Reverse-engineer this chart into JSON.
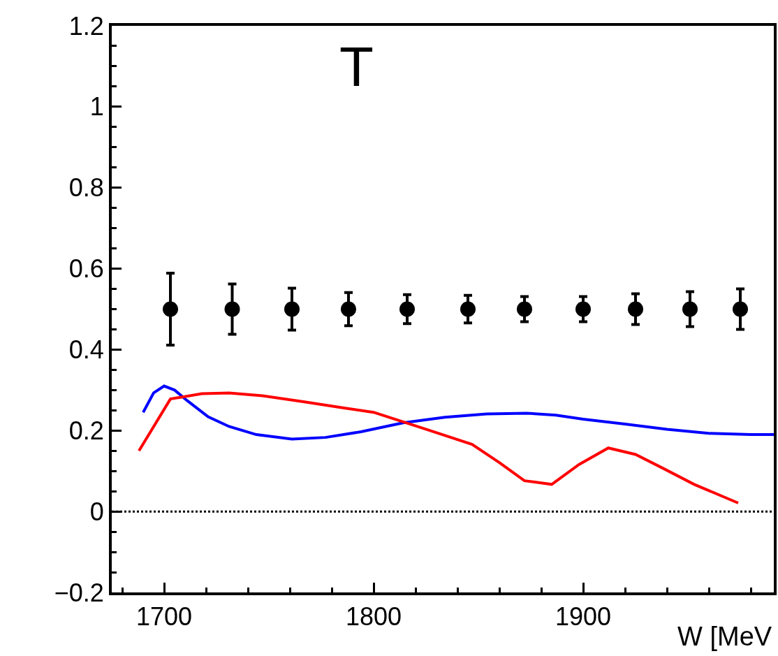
{
  "chart_data": {
    "type": "scatter",
    "title": "T",
    "xlabel": "W [MeV",
    "xlim": [
      1675,
      1991
    ],
    "xticks": [
      1700,
      1800,
      1900
    ],
    "ylim": [
      -0.2,
      1.2
    ],
    "yticks": [
      {
        "value": -0.2,
        "label": "−0.2"
      },
      0,
      0.2,
      0.4,
      0.6,
      0.8,
      1,
      1.2
    ],
    "ref_lines": [
      {
        "axis": "y",
        "value": 0,
        "color": "#000000",
        "line_style": "dotted"
      }
    ],
    "series": [
      {
        "color": "#000000",
        "marker": "circle",
        "x": [
          1703,
          1732.5,
          1761,
          1788,
          1816,
          1845,
          1872,
          1900,
          1925,
          1951,
          1975
        ],
        "values": [
          0.5,
          0.5,
          0.5,
          0.5,
          0.5,
          0.5,
          0.5,
          0.5,
          0.5,
          0.5,
          0.5
        ],
        "errors": [
          0.089,
          0.062,
          0.052,
          0.041,
          0.036,
          0.034,
          0.031,
          0.031,
          0.038,
          0.043,
          0.05
        ]
      },
      {
        "type": "line",
        "color": "#0000ff",
        "marker": "none",
        "x": [
          1690,
          1695,
          1700,
          1705,
          1711,
          1721,
          1731,
          1744,
          1761,
          1777,
          1794,
          1814,
          1834,
          1854,
          1873,
          1887,
          1900,
          1920,
          1940,
          1960,
          1980,
          1991
        ],
        "values": [
          0.245,
          0.293,
          0.31,
          0.3,
          0.274,
          0.234,
          0.21,
          0.19,
          0.179,
          0.183,
          0.197,
          0.219,
          0.233,
          0.241,
          0.243,
          0.238,
          0.228,
          0.216,
          0.203,
          0.193,
          0.19,
          0.19
        ]
      },
      {
        "type": "line",
        "color": "#ff0000",
        "marker": "none",
        "x": [
          1688,
          1703,
          1718,
          1731,
          1747,
          1767,
          1787,
          1800,
          1827,
          1847,
          1860,
          1872,
          1885,
          1898,
          1912,
          1925,
          1938,
          1953,
          1974
        ],
        "values": [
          0.15,
          0.278,
          0.291,
          0.293,
          0.286,
          0.271,
          0.255,
          0.245,
          0.2,
          0.166,
          0.121,
          0.076,
          0.067,
          0.116,
          0.157,
          0.141,
          0.107,
          0.067,
          0.021
        ]
      }
    ]
  }
}
